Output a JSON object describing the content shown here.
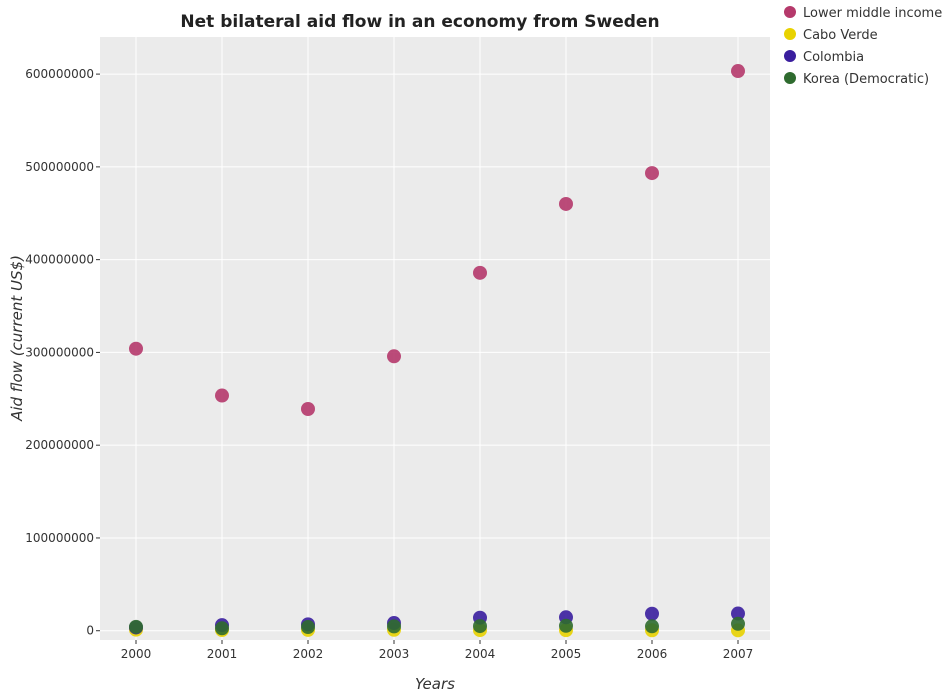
{
  "chart_data": {
    "type": "scatter",
    "title": "Net bilateral aid flow in an economy from Sweden",
    "xlabel": "Years",
    "ylabel": "Aid flow (current US$)",
    "categories": [
      "2000",
      "2001",
      "2002",
      "2003",
      "2004",
      "2005",
      "2006",
      "2007"
    ],
    "ylim": [
      -10000000,
      640000000
    ],
    "yticks": [
      0,
      100000000,
      200000000,
      300000000,
      400000000,
      500000000,
      600000000
    ],
    "ytick_labels": [
      "0",
      "100000000",
      "200000000",
      "300000000",
      "400000000",
      "500000000",
      "600000000"
    ],
    "grid": false,
    "legend_position": "top-right",
    "series": [
      {
        "name": "Lower middle income",
        "color": "#b5396b",
        "values": [
          304000000,
          253500000,
          239000000,
          295800000,
          385800000,
          460000000,
          493300000,
          603300000
        ]
      },
      {
        "name": "Cabo Verde",
        "color": "#e8d200",
        "values": [
          1200000,
          800000,
          900000,
          1000000,
          700000,
          600000,
          500000,
          400000
        ]
      },
      {
        "name": "Colombia",
        "color": "#3a1e9e",
        "values": [
          3500000,
          6000000,
          6900000,
          8300000,
          14000000,
          14500000,
          18300000,
          18500000
        ]
      },
      {
        "name": "Korea (Democratic)",
        "color": "#2f6b2f",
        "values": [
          4200000,
          2600000,
          4000000,
          4700000,
          5000000,
          5300000,
          4800000,
          7500000
        ]
      }
    ]
  }
}
